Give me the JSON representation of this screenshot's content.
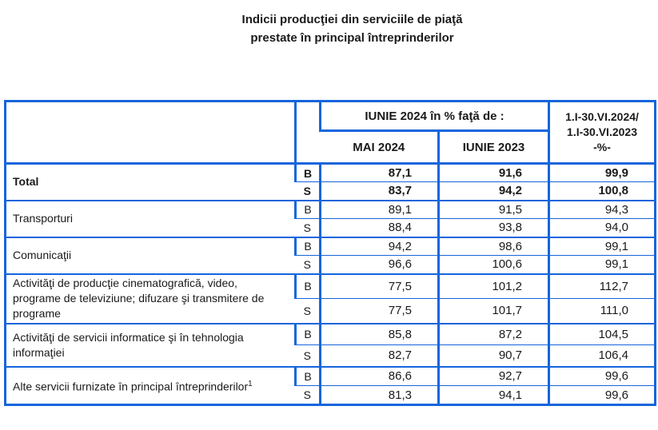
{
  "title": {
    "line1": "Indicii producţiei din serviciile de piaţă",
    "line2": "prestate în principal întreprinderilor"
  },
  "table": {
    "header": {
      "comparison_group": "IUNIE 2024  în % faţă de :",
      "col_mai": "MAI 2024",
      "col_iunie": "IUNIE 2023",
      "period_lines": [
        "1.I-30.VI.2024/",
        "1.I-30.VI.2023",
        "-%-"
      ]
    },
    "bs_labels": [
      "B",
      "S"
    ],
    "rows": [
      {
        "label": "Total",
        "sup": null,
        "bold": true,
        "b": [
          "87,1",
          "91,6",
          "99,9"
        ],
        "s": [
          "83,7",
          "94,2",
          "100,8"
        ]
      },
      {
        "label": "Transporturi",
        "sup": null,
        "bold": false,
        "b": [
          "89,1",
          "91,5",
          "94,3"
        ],
        "s": [
          "88,4",
          "93,8",
          "94,0"
        ]
      },
      {
        "label": "Comunicaţii",
        "sup": null,
        "bold": false,
        "b": [
          "94,2",
          "98,6",
          "99,1"
        ],
        "s": [
          "96,6",
          "100,6",
          "99,1"
        ]
      },
      {
        "label": "Activităţi de producţie cinematografică, video, programe de televiziune; difuzare şi transmitere de programe",
        "sup": null,
        "bold": false,
        "b": [
          "77,5",
          "101,2",
          "112,7"
        ],
        "s": [
          "77,5",
          "101,7",
          "111,0"
        ]
      },
      {
        "label": "Activităţi de servicii informatice şi  în tehnologia informaţiei",
        "sup": null,
        "bold": false,
        "b": [
          "85,8",
          "87,2",
          "104,5"
        ],
        "s": [
          "82,7",
          "90,7",
          "106,4"
        ]
      },
      {
        "label": "Alte servicii furnizate în principal întreprinderilor",
        "sup": "1",
        "bold": false,
        "b": [
          "86,6",
          "92,7",
          "99,6"
        ],
        "s": [
          "81,3",
          "94,1",
          "99,6"
        ]
      }
    ]
  },
  "colors": {
    "border_blue": "#1565DC",
    "text": "#1A1A1A"
  }
}
